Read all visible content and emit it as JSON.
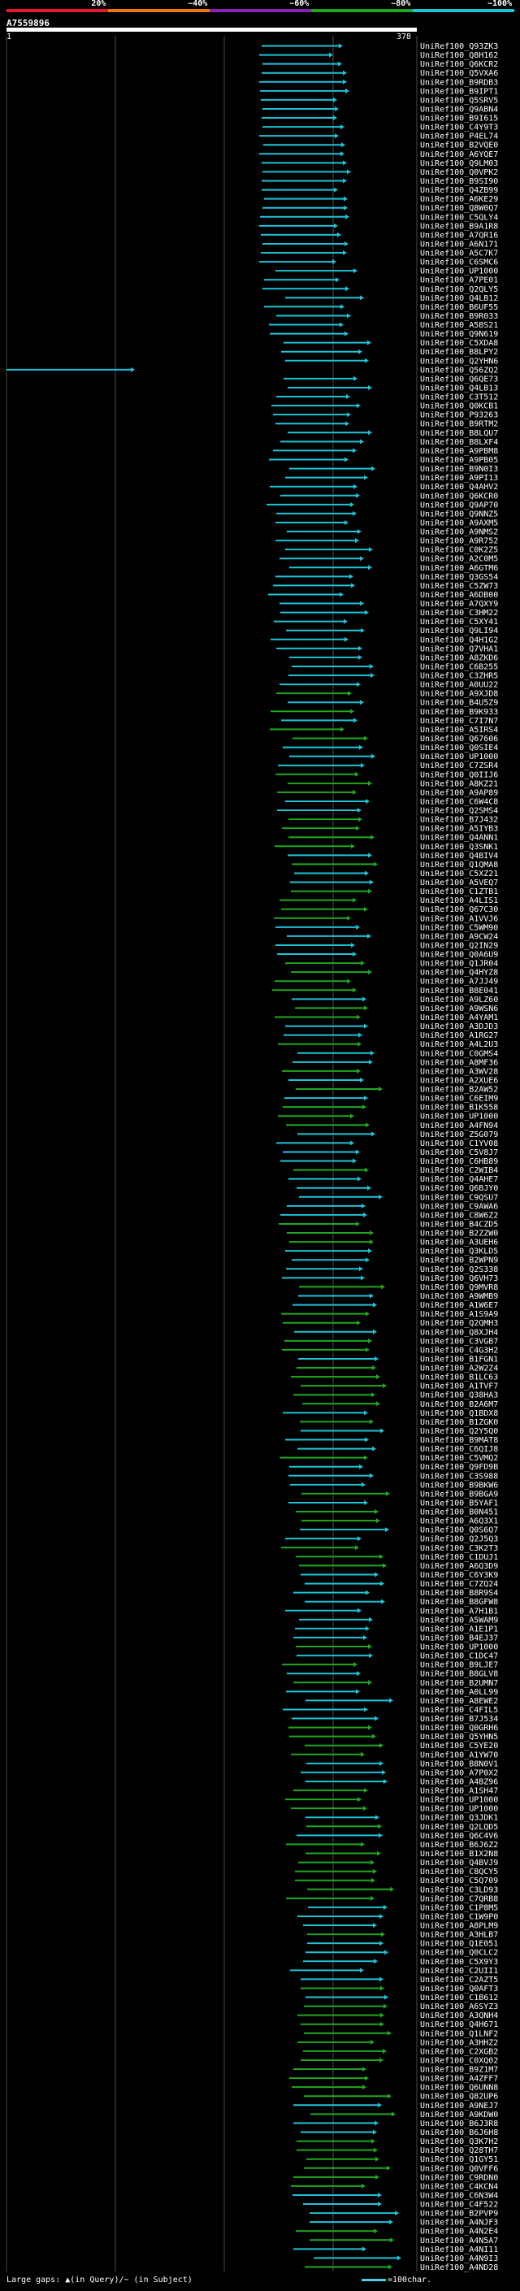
{
  "colorbar": {
    "labels": [
      "20%",
      "~40%",
      "~60%",
      "~80%",
      "~100%"
    ],
    "colors": [
      "#e8142b",
      "#e8780a",
      "#8b1fb8",
      "#1fa81f",
      "#1ec3d8"
    ]
  },
  "query": {
    "id": "A7559896",
    "start_label": "1",
    "end_label": "378"
  },
  "hits": [
    "UniRef100_Q93ZK3",
    "UniRef100_Q8H162",
    "UniRef100_Q6KCR2",
    "UniRef100_Q5VXA6",
    "UniRef100_B9RDB3",
    "UniRef100_B9IPT1",
    "UniRef100_Q5SRV5",
    "UniRef100_Q9ABN4",
    "UniRef100_B9I615",
    "UniRef100_C4Y9T3",
    "UniRef100_P4EL74",
    "UniRef100_B2VQE0",
    "UniRef100_A6YQE7",
    "UniRef100_Q9LM03",
    "UniRef100_Q0VPK2",
    "UniRef100_B9SI90",
    "UniRef100_Q4ZB99",
    "UniRef100_A6KE29",
    "UniRef100_Q8W0Q7",
    "UniRef100_C5QLY4",
    "UniRef100_B9A1R8",
    "UniRef100_A7QR16",
    "UniRef100_A6N171",
    "UniRef100_A5C7K7",
    "UniRef100_C6SMC6",
    "UniRef100_UP1000",
    "UniRef100_A7PE01",
    "UniRef100_Q2QLY5",
    "UniRef100_Q4LB12",
    "UniRef100_B6UF55",
    "UniRef100_B9R033",
    "UniRef100_A5BS21",
    "UniRef100_Q9N619",
    "UniRef100_C5XDA8",
    "UniRef100_B8LPY2",
    "UniRef100_Q2YHN6",
    "UniRef100_Q56ZQ2",
    "UniRef100_Q6QE73",
    "UniRef100_Q4LB13",
    "UniRef100_C3T512",
    "UniRef100_Q0KCB1",
    "UniRef100_P93263",
    "UniRef100_B9RTM2",
    "UniRef100_B8LQU7",
    "UniRef100_B8LXF4",
    "UniRef100_A9PBM8",
    "UniRef100_A9PB05",
    "UniRef100_B9N0I3",
    "UniRef100_A9PI13",
    "UniRef100_Q4AHV2",
    "UniRef100_Q6KCR0",
    "UniRef100_Q9AP70",
    "UniRef100_Q9NNZ5",
    "UniRef100_A9AXM5",
    "UniRef100_A9NMS2",
    "UniRef100_A9R752",
    "UniRef100_C0K2Z5",
    "UniRef100_A2C0M5",
    "UniRef100_A6GTM6",
    "UniRef100_Q3GS54",
    "UniRef100_C5ZW73",
    "UniRef100_A6DB00",
    "UniRef100_A7QXY9",
    "UniRef100_C3HM22",
    "UniRef100_C5XY41",
    "UniRef100_Q9LI94",
    "UniRef100_Q4H1G2",
    "UniRef100_Q7VHA1",
    "UniRef100_A8ZKD6",
    "UniRef100_C6B255",
    "UniRef100_C3ZHR5",
    "UniRef100_A0UU22",
    "UniRef100_A9XJD8",
    "UniRef100_B4U5Z9",
    "UniRef100_B9K933",
    "UniRef100_C7I7N7",
    "UniRef100_A5IRS4",
    "UniRef100_Q67606",
    "UniRef100_Q0SIE4",
    "UniRef100_UP1000",
    "UniRef100_C7ZSR4",
    "UniRef100_Q0IIJ6",
    "UniRef100_A8KZ21",
    "UniRef100_A9AP89",
    "UniRef100_C6W4C8",
    "UniRef100_Q2SMS4",
    "UniRef100_B7J432",
    "UniRef100_A5IYB3",
    "UniRef100_Q4ANN1",
    "UniRef100_Q3SNK1",
    "UniRef100_Q4BIV4",
    "UniRef100_Q1QMA8",
    "UniRef100_C5XZ21",
    "UniRef100_A5VEQ7",
    "UniRef100_C1ZTB1",
    "UniRef100_A4LIS1",
    "UniRef100_Q67C30",
    "UniRef100_A1VVJ6",
    "UniRef100_C5WM90",
    "UniRef100_A9CW24",
    "UniRef100_Q2IN29",
    "UniRef100_Q0A6U9",
    "UniRef100_Q1JR04",
    "UniRef100_Q4HYZ8",
    "UniRef100_A7JJ49",
    "UniRef100_B8E041",
    "UniRef100_A9LZ60",
    "UniRef100_A9WSN6",
    "UniRef100_A4YAM1",
    "UniRef100_A3DJD3",
    "UniRef100_A1RG27",
    "UniRef100_A4L2U3",
    "UniRef100_C0GMS4",
    "UniRef100_A8MF36",
    "UniRef100_A3WV28",
    "UniRef100_A2XUE6",
    "UniRef100_B2AW52",
    "UniRef100_C6EIM9",
    "UniRef100_B1K558",
    "UniRef100_UP1000",
    "UniRef100_A4FN94",
    "UniRef100_Z5G079",
    "UniRef100_C1YV08",
    "UniRef100_C5V8J7",
    "UniRef100_C6HB89",
    "UniRef100_C2WIB4",
    "UniRef100_Q4AHE7",
    "UniRef100_Q6BJY0",
    "UniRef100_C9QSU7",
    "UniRef100_C9AWA6",
    "UniRef100_C8W6Z2",
    "UniRef100_B4CZD5",
    "UniRef100_B2ZZW0",
    "UniRef100_A3UEH6",
    "UniRef100_Q3KLD5",
    "UniRef100_B2WPN9",
    "UniRef100_Q2S338",
    "UniRef100_Q6VH73",
    "UniRef100_Q9MVR8",
    "UniRef100_A9WMB9",
    "UniRef100_A1W6E7",
    "UniRef100_A1S9A9",
    "UniRef100_Q2QMH3",
    "UniRef100_Q8XJH4",
    "UniRef100_C3VGB7",
    "UniRef100_C4G3H2",
    "UniRef100_B1FGN1",
    "UniRef100_A2W2Z4",
    "UniRef100_B1LC63",
    "UniRef100_A1TVF7",
    "UniRef100_Q38HA3",
    "UniRef100_B2A6M7",
    "UniRef100_Q1BDX8",
    "UniRef100_B1ZGK0",
    "UniRef100_Q2Y5Q0",
    "UniRef100_B9MAT8",
    "UniRef100_C6QIJ8",
    "UniRef100_C5VMQ2",
    "UniRef100_Q9FD9B",
    "UniRef100_C3S988",
    "UniRef100_B9BKW6",
    "UniRef100_B9BGA9",
    "UniRef100_B5YAF1",
    "UniRef100_B0N451",
    "UniRef100_A6Q3X1",
    "UniRef100_Q0S6Q7",
    "UniRef100_Q2J5Q3",
    "UniRef100_C3K2T3",
    "UniRef100_C1DUJ1",
    "UniRef100_A6Q3D9",
    "UniRef100_C6Y3K9",
    "UniRef100_C7ZQ24",
    "UniRef100_B8R9S4",
    "UniRef100_B8GFW8",
    "UniRef100_A7H1B1",
    "UniRef100_A5WAM9",
    "UniRef100_A1E1P1",
    "UniRef100_B4EJ37",
    "UniRef100_UP1000",
    "UniRef100_C1DC47",
    "UniRef100_B9LJE7",
    "UniRef100_B8GLV8",
    "UniRef100_B2UMN7",
    "UniRef100_A0LL99",
    "UniRef100_A8EWE2",
    "UniRef100_C4FIL5",
    "UniRef100_B7J534",
    "UniRef100_Q0GRH6",
    "UniRef100_Q5YHN5",
    "UniRef100_C5YE20",
    "UniRef100_A1YW70",
    "UniRef100_B8N0V1",
    "UniRef100_A7P0X2",
    "UniRef100_A4BZ96",
    "UniRef100_A1SH47",
    "UniRef100_UP1000",
    "UniRef100_UP1000",
    "UniRef100_Q3JDK1",
    "UniRef100_Q2LQD5",
    "UniRef100_Q6C4V6",
    "UniRef100_B6J6Z2",
    "UniRef100_B1X2N8",
    "UniRef100_Q4BVJ9",
    "UniRef100_C8QCY5",
    "UniRef100_C5Q709",
    "UniRef100_C3LD93",
    "UniRef100_C7QRB8",
    "UniRef100_C1P8M5",
    "UniRef100_C1W9P0",
    "UniRef100_A8PLM9",
    "UniRef100_A3HLB7",
    "UniRef100_Q1E051",
    "UniRef100_Q0CLC2",
    "UniRef100_C5X9Y3",
    "UniRef100_C2UII1",
    "UniRef100_C2AZT5",
    "UniRef100_Q0AFT3",
    "UniRef100_C1B612",
    "UniRef100_A6SYZ3",
    "UniRef100_A3QNH4",
    "UniRef100_Q4H671",
    "UniRef100_Q1LNF2",
    "UniRef100_A3HHZ2",
    "UniRef100_C2XGB2",
    "UniRef100_C0XQ02",
    "UniRef100_B9Z1M7",
    "UniRef100_A4ZFF7",
    "UniRef100_Q6UNN8",
    "UniRef100_Q82UP6",
    "UniRef100_A9NEJ7",
    "UniRef100_A9KDW0",
    "UniRef100_B6J3R8",
    "UniRef100_B6J6H8",
    "UniRef100_Q3K7H2",
    "UniRef100_Q28TH7",
    "UniRef100_Q1GY51",
    "UniRef100_Q0VFF6",
    "UniRef100_C9RDN0",
    "UniRef100_C4KCN4",
    "UniRef100_C6N3W4",
    "UniRef100_C4F522",
    "UniRef100_B2PVP9",
    "UniRef100_A4NJF3",
    "UniRef100_A4N2E4",
    "UniRef100_A4N5A7",
    "UniRef100_A4NI11",
    "UniRef100_A4N9I3",
    "UniRef100_A4ND28"
  ],
  "footer": {
    "gaps_text": "Large gaps: ▲(in Query)/~ (in Subject)",
    "legend_text": "=100char."
  }
}
